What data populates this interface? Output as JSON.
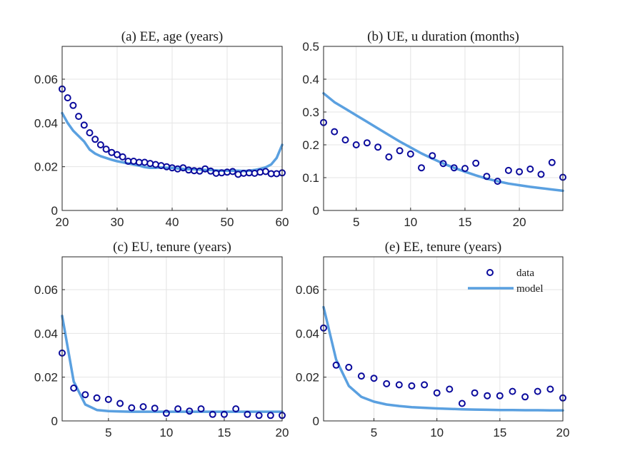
{
  "colors": {
    "data_marker": "#0a0a9c",
    "model_line": "#5aa0e0",
    "grid": "#e4e4e4",
    "axis": "#262626",
    "background": "#ffffff"
  },
  "legend": {
    "data_label": "data",
    "model_label": "model",
    "placement": "top-right of panel (e)"
  },
  "chart_data": [
    {
      "type": "line",
      "title": "(a) EE, age (years)",
      "xlabel": "",
      "ylabel": "",
      "xlim": [
        20,
        60
      ],
      "ylim": [
        0,
        0.075
      ],
      "xticks": [
        20,
        30,
        40,
        50,
        60
      ],
      "yticks": [
        0,
        0.02,
        0.04,
        0.06
      ],
      "xtick_labels": [
        "20",
        "30",
        "40",
        "50",
        "60"
      ],
      "ytick_labels": [
        "0",
        "0.02",
        "0.04",
        "0.06"
      ],
      "grid": true,
      "series": [
        {
          "name": "data",
          "style": "markers",
          "x": [
            20,
            21,
            22,
            23,
            24,
            25,
            26,
            27,
            28,
            29,
            30,
            31,
            32,
            33,
            34,
            35,
            36,
            37,
            38,
            39,
            40,
            41,
            42,
            43,
            44,
            45,
            46,
            47,
            48,
            49,
            50,
            51,
            52,
            53,
            54,
            55,
            56,
            57,
            58,
            59,
            60
          ],
          "y": [
            0.0555,
            0.0515,
            0.048,
            0.043,
            0.039,
            0.0355,
            0.0325,
            0.03,
            0.028,
            0.0265,
            0.0255,
            0.0245,
            0.0225,
            0.0225,
            0.022,
            0.022,
            0.0215,
            0.021,
            0.0205,
            0.02,
            0.0195,
            0.019,
            0.0195,
            0.0185,
            0.0182,
            0.018,
            0.019,
            0.018,
            0.017,
            0.0172,
            0.0175,
            0.0178,
            0.0165,
            0.017,
            0.0172,
            0.017,
            0.0175,
            0.0178,
            0.0168,
            0.0168,
            0.0172
          ]
        },
        {
          "name": "model",
          "style": "line",
          "x": [
            20,
            21,
            22,
            23,
            24,
            25,
            26,
            27,
            28,
            29,
            30,
            31,
            32,
            33,
            34,
            35,
            36,
            37,
            38,
            39,
            40,
            41,
            42,
            43,
            44,
            45,
            46,
            47,
            48,
            49,
            50,
            51,
            52,
            53,
            54,
            55,
            56,
            57,
            58,
            59,
            60
          ],
          "y": [
            0.0445,
            0.04,
            0.0365,
            0.034,
            0.0315,
            0.0278,
            0.026,
            0.0248,
            0.024,
            0.0232,
            0.0225,
            0.022,
            0.0215,
            0.021,
            0.0205,
            0.0198,
            0.0195,
            0.0195,
            0.0197,
            0.0195,
            0.0195,
            0.0192,
            0.019,
            0.0188,
            0.0188,
            0.0187,
            0.0185,
            0.0185,
            0.0183,
            0.0182,
            0.0182,
            0.0182,
            0.0182,
            0.018,
            0.0182,
            0.0185,
            0.019,
            0.0197,
            0.021,
            0.024,
            0.03
          ]
        }
      ]
    },
    {
      "type": "line",
      "title": "(b) UE, u duration (months)",
      "xlabel": "",
      "ylabel": "",
      "xlim": [
        2,
        24
      ],
      "ylim": [
        0,
        0.5
      ],
      "xticks": [
        5,
        10,
        15,
        20
      ],
      "yticks": [
        0,
        0.1,
        0.2,
        0.3,
        0.4,
        0.5
      ],
      "xtick_labels": [
        "5",
        "10",
        "15",
        "20"
      ],
      "ytick_labels": [
        "0",
        "0.1",
        "0.2",
        "0.3",
        "0.4",
        "0.5"
      ],
      "grid": true,
      "series": [
        {
          "name": "data",
          "style": "markers",
          "x": [
            2,
            3,
            4,
            5,
            6,
            7,
            8,
            9,
            10,
            11,
            12,
            13,
            14,
            15,
            16,
            17,
            18,
            19,
            20,
            21,
            22,
            23,
            24
          ],
          "y": [
            0.268,
            0.24,
            0.215,
            0.2,
            0.206,
            0.193,
            0.163,
            0.182,
            0.172,
            0.13,
            0.167,
            0.143,
            0.13,
            0.128,
            0.144,
            0.104,
            0.089,
            0.122,
            0.118,
            0.126,
            0.11,
            0.146,
            0.101
          ]
        },
        {
          "name": "model",
          "style": "line",
          "x": [
            2,
            3,
            4,
            5,
            6,
            7,
            8,
            9,
            10,
            11,
            12,
            13,
            14,
            15,
            16,
            17,
            18,
            19,
            20,
            21,
            22,
            23,
            24
          ],
          "y": [
            0.357,
            0.33,
            0.31,
            0.29,
            0.27,
            0.25,
            0.23,
            0.21,
            0.192,
            0.174,
            0.158,
            0.143,
            0.13,
            0.118,
            0.107,
            0.097,
            0.089,
            0.082,
            0.077,
            0.072,
            0.068,
            0.064,
            0.06
          ]
        }
      ]
    },
    {
      "type": "line",
      "title": "(c) EU, tenure (years)",
      "xlabel": "",
      "ylabel": "",
      "xlim": [
        1,
        20
      ],
      "ylim": [
        0,
        0.075
      ],
      "xticks": [
        5,
        10,
        15,
        20
      ],
      "yticks": [
        0,
        0.02,
        0.04,
        0.06
      ],
      "xtick_labels": [
        "5",
        "10",
        "15",
        "20"
      ],
      "ytick_labels": [
        "0",
        "0.02",
        "0.04",
        "0.06"
      ],
      "grid": true,
      "series": [
        {
          "name": "data",
          "style": "markers",
          "x": [
            1,
            2,
            3,
            4,
            5,
            6,
            7,
            8,
            9,
            10,
            11,
            12,
            13,
            14,
            15,
            16,
            17,
            18,
            19,
            20
          ],
          "y": [
            0.031,
            0.015,
            0.012,
            0.0105,
            0.0098,
            0.008,
            0.006,
            0.0065,
            0.0058,
            0.0035,
            0.0055,
            0.0045,
            0.0055,
            0.003,
            0.003,
            0.0055,
            0.003,
            0.0025,
            0.0025,
            0.0025
          ]
        },
        {
          "name": "model",
          "style": "line",
          "x": [
            1,
            2,
            3,
            4,
            5,
            6,
            7,
            8,
            9,
            10,
            11,
            12,
            13,
            14,
            15,
            16,
            17,
            18,
            19,
            20
          ],
          "y": [
            0.048,
            0.018,
            0.0075,
            0.005,
            0.0045,
            0.0043,
            0.0042,
            0.0042,
            0.0042,
            0.0042,
            0.0042,
            0.0042,
            0.0042,
            0.0042,
            0.0042,
            0.0042,
            0.0042,
            0.0042,
            0.0042,
            0.0042
          ]
        }
      ]
    },
    {
      "type": "line",
      "title": "(e) EE, tenure (years)",
      "xlabel": "",
      "ylabel": "",
      "xlim": [
        1,
        20
      ],
      "ylim": [
        0,
        0.075
      ],
      "xticks": [
        5,
        10,
        15,
        20
      ],
      "yticks": [
        0,
        0.02,
        0.04,
        0.06
      ],
      "xtick_labels": [
        "5",
        "10",
        "15",
        "20"
      ],
      "ytick_labels": [
        "0",
        "0.02",
        "0.04",
        "0.06"
      ],
      "grid": true,
      "legend": true,
      "series": [
        {
          "name": "data",
          "style": "markers",
          "x": [
            1,
            2,
            3,
            4,
            5,
            6,
            7,
            8,
            9,
            10,
            11,
            12,
            13,
            14,
            15,
            16,
            17,
            18,
            19,
            20
          ],
          "y": [
            0.0425,
            0.0255,
            0.0245,
            0.0205,
            0.0195,
            0.017,
            0.0165,
            0.016,
            0.0165,
            0.0128,
            0.0145,
            0.008,
            0.0128,
            0.0115,
            0.0115,
            0.0135,
            0.011,
            0.0135,
            0.0145,
            0.0105
          ]
        },
        {
          "name": "model",
          "style": "line",
          "x": [
            1,
            2,
            3,
            4,
            5,
            6,
            7,
            8,
            9,
            10,
            11,
            12,
            13,
            14,
            15,
            16,
            17,
            18,
            19,
            20
          ],
          "y": [
            0.052,
            0.028,
            0.016,
            0.011,
            0.0088,
            0.0075,
            0.0068,
            0.0063,
            0.006,
            0.0057,
            0.0055,
            0.0053,
            0.0052,
            0.0051,
            0.005,
            0.005,
            0.0049,
            0.0049,
            0.0048,
            0.0048
          ]
        }
      ]
    }
  ]
}
